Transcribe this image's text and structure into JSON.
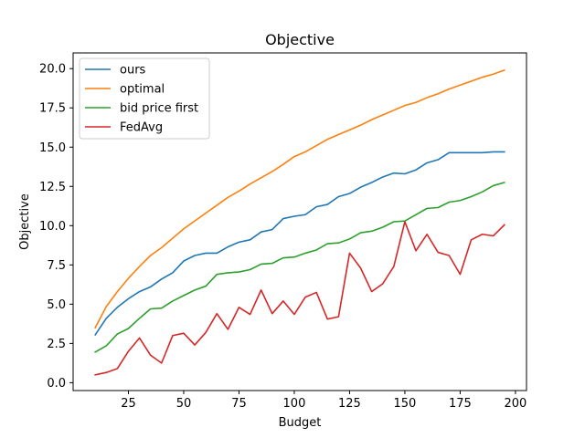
{
  "chart_data": {
    "type": "line",
    "title": "Objective",
    "xlabel": "Budget",
    "ylabel": "Objective",
    "xlim": [
      0,
      205
    ],
    "ylim": [
      -0.5,
      21.0
    ],
    "xticks": [
      25,
      50,
      75,
      100,
      125,
      150,
      175,
      200
    ],
    "yticks": [
      0.0,
      2.5,
      5.0,
      7.5,
      10.0,
      12.5,
      15.0,
      17.5,
      20.0
    ],
    "xtick_labels": [
      "25",
      "50",
      "75",
      "100",
      "125",
      "150",
      "175",
      "200"
    ],
    "ytick_labels": [
      "0.0",
      "2.5",
      "5.0",
      "7.5",
      "10.0",
      "12.5",
      "15.0",
      "17.5",
      "20.0"
    ],
    "grid": false,
    "legend_position": "top-left",
    "x": [
      10,
      15,
      20,
      25,
      30,
      35,
      40,
      45,
      50,
      55,
      60,
      65,
      70,
      75,
      80,
      85,
      90,
      95,
      100,
      105,
      110,
      115,
      120,
      125,
      130,
      135,
      140,
      145,
      150,
      155,
      160,
      165,
      170,
      175,
      180,
      185,
      190,
      195
    ],
    "series": [
      {
        "name": "ours",
        "color": "#1f77b4",
        "values": [
          3.05,
          4.1,
          4.8,
          5.35,
          5.8,
          6.1,
          6.6,
          7.0,
          7.75,
          8.1,
          8.25,
          8.25,
          8.65,
          8.95,
          9.1,
          9.6,
          9.75,
          10.45,
          10.6,
          10.7,
          11.2,
          11.35,
          11.85,
          12.05,
          12.45,
          12.75,
          13.1,
          13.35,
          13.3,
          13.55,
          14.0,
          14.2,
          14.65,
          14.65,
          14.65,
          14.65,
          14.7,
          14.7
        ]
      },
      {
        "name": "optimal",
        "color": "#ff7f0e",
        "values": [
          3.5,
          4.85,
          5.8,
          6.65,
          7.4,
          8.1,
          8.6,
          9.2,
          9.8,
          10.3,
          10.8,
          11.3,
          11.8,
          12.2,
          12.65,
          13.05,
          13.45,
          13.9,
          14.4,
          14.7,
          15.1,
          15.5,
          15.8,
          16.1,
          16.4,
          16.75,
          17.05,
          17.35,
          17.65,
          17.85,
          18.15,
          18.4,
          18.7,
          18.95,
          19.2,
          19.45,
          19.65,
          19.9
        ]
      },
      {
        "name": "bid price first",
        "color": "#2ca02c",
        "values": [
          1.95,
          2.35,
          3.1,
          3.45,
          4.1,
          4.7,
          4.75,
          5.2,
          5.55,
          5.9,
          6.15,
          6.9,
          7.0,
          7.05,
          7.2,
          7.55,
          7.6,
          7.95,
          8.0,
          8.25,
          8.45,
          8.85,
          8.9,
          9.15,
          9.55,
          9.65,
          9.9,
          10.25,
          10.3,
          10.7,
          11.1,
          11.15,
          11.5,
          11.6,
          11.85,
          12.15,
          12.55,
          12.75
        ]
      },
      {
        "name": "FedAvg",
        "color": "#d62728",
        "values": [
          0.5,
          0.65,
          0.9,
          2.0,
          2.85,
          1.75,
          1.25,
          3.0,
          3.15,
          2.4,
          3.2,
          4.4,
          3.4,
          4.8,
          4.35,
          5.9,
          4.4,
          5.2,
          4.35,
          5.45,
          5.75,
          4.05,
          4.2,
          8.25,
          7.3,
          5.8,
          6.3,
          7.4,
          10.25,
          8.4,
          9.45,
          8.3,
          8.1,
          6.9,
          9.1,
          9.45,
          9.35,
          10.05
        ]
      }
    ]
  }
}
